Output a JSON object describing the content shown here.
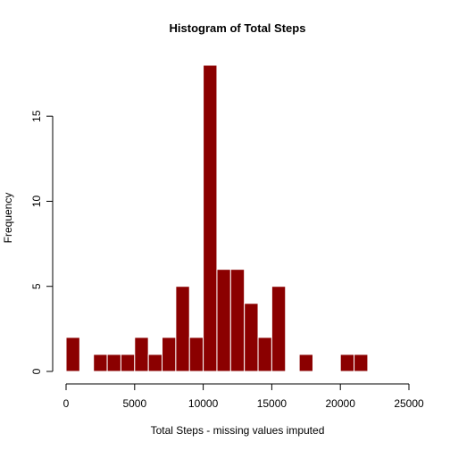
{
  "chart_data": {
    "type": "bar",
    "title": "Histogram of Total Steps",
    "xlabel": "Total Steps - missing values imputed",
    "ylabel": "Frequency",
    "bar_color": "#8B0000",
    "bin_width": 1000,
    "xlim": [
      0,
      25000
    ],
    "ylim": [
      0,
      18
    ],
    "x_ticks": [
      0,
      5000,
      10000,
      15000,
      20000,
      25000
    ],
    "y_ticks": [
      0,
      5,
      10,
      15
    ],
    "bins": [
      {
        "start": 0,
        "end": 1000,
        "count": 2
      },
      {
        "start": 1000,
        "end": 2000,
        "count": 0
      },
      {
        "start": 2000,
        "end": 3000,
        "count": 1
      },
      {
        "start": 3000,
        "end": 4000,
        "count": 1
      },
      {
        "start": 4000,
        "end": 5000,
        "count": 1
      },
      {
        "start": 5000,
        "end": 6000,
        "count": 2
      },
      {
        "start": 6000,
        "end": 7000,
        "count": 1
      },
      {
        "start": 7000,
        "end": 8000,
        "count": 2
      },
      {
        "start": 8000,
        "end": 9000,
        "count": 5
      },
      {
        "start": 9000,
        "end": 10000,
        "count": 2
      },
      {
        "start": 10000,
        "end": 11000,
        "count": 18
      },
      {
        "start": 11000,
        "end": 12000,
        "count": 6
      },
      {
        "start": 12000,
        "end": 13000,
        "count": 6
      },
      {
        "start": 13000,
        "end": 14000,
        "count": 4
      },
      {
        "start": 14000,
        "end": 15000,
        "count": 2
      },
      {
        "start": 15000,
        "end": 16000,
        "count": 5
      },
      {
        "start": 16000,
        "end": 17000,
        "count": 0
      },
      {
        "start": 17000,
        "end": 18000,
        "count": 1
      },
      {
        "start": 18000,
        "end": 19000,
        "count": 0
      },
      {
        "start": 19000,
        "end": 20000,
        "count": 0
      },
      {
        "start": 20000,
        "end": 21000,
        "count": 1
      },
      {
        "start": 21000,
        "end": 22000,
        "count": 1
      }
    ]
  }
}
